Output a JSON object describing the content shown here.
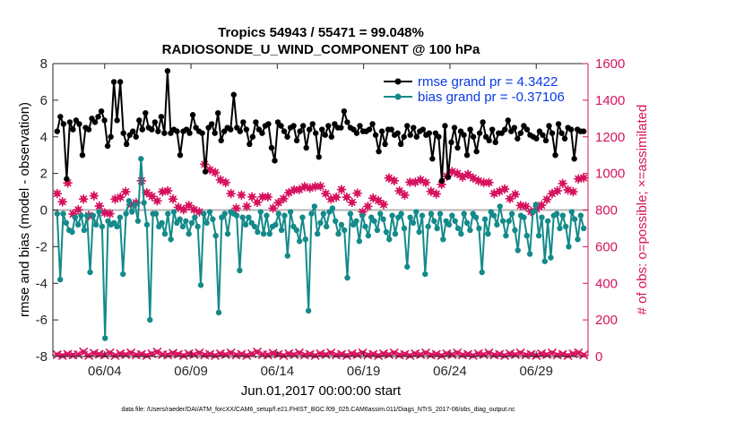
{
  "chart_data": {
    "type": "line",
    "title": "Tropics 54943 / 55471 = 99.048%",
    "subtitle": "RADIOSONDE_U_WIND_COMPONENT @ 100 hPa",
    "xlabel": "Jun.01,2017 00:00:00 start",
    "ylabel": "rmse and bias (model - observation)",
    "y2label": "# of obs: o=possible; ×=assimilated",
    "footnote": "data file: /Users/raeder/DAI/ATM_forcXX/CAM6_setup/f.e21.FHIST_BGC.f09_025.CAM6assim.011/Diags_NTrS_2017-06/obs_diag_output.nc",
    "xlim": [
      0.0,
      31.0
    ],
    "ylim": [
      -8,
      8
    ],
    "y2lim": [
      0,
      1600
    ],
    "xticks": [
      3,
      8,
      13,
      18,
      23,
      28
    ],
    "xticklabels": [
      "06/04",
      "06/09",
      "06/14",
      "06/19",
      "06/24",
      "06/29"
    ],
    "yticks": [
      -8,
      -6,
      -4,
      -2,
      0,
      2,
      4,
      6,
      8
    ],
    "y2ticks": [
      0,
      200,
      400,
      600,
      800,
      1000,
      1200,
      1400,
      1600
    ],
    "colors": {
      "rmse": "#000000",
      "bias": "#148a8a",
      "obs": "#d6135f",
      "legend_text": "#0a3ae6",
      "zero_line": "#b4b4b4"
    },
    "legend": [
      "rmse grand pr = 4.3422",
      "bias grand pr = -0.37106"
    ],
    "series": [
      {
        "name": "rmse grand pr = 4.3422",
        "values": [
          4.3,
          5.1,
          4.7,
          1.7,
          4.8,
          4.4,
          4.9,
          4.7,
          3.0,
          4.5,
          4.4,
          5.0,
          4.8,
          5.1,
          5.4,
          4.9,
          3.5,
          4.0,
          7.0,
          4.9,
          7.0,
          4.2,
          3.6,
          4.1,
          4.3,
          4.0,
          4.9,
          4.4,
          5.3,
          4.5,
          4.4,
          4.8,
          4.3,
          5.1,
          4.2,
          7.6,
          4.2,
          4.4,
          4.3,
          3.0,
          4.3,
          4.4,
          4.2,
          5.2,
          4.5,
          4.3,
          4.2,
          2.1,
          4.5,
          4.7,
          4.2,
          5.3,
          3.8,
          4.3,
          4.5,
          4.4,
          6.3,
          4.5,
          4.3,
          4.8,
          4.4,
          3.6,
          4.0,
          4.8,
          4.4,
          4.2,
          4.6,
          4.7,
          3.4,
          2.7,
          4.8,
          4.6,
          4.3,
          4.0,
          4.5,
          4.6,
          3.8,
          4.3,
          4.6,
          3.4,
          4.4,
          4.7,
          4.2,
          2.9,
          4.4,
          4.1,
          4.6,
          4.0,
          4.7,
          4.5,
          4.5,
          5.4,
          4.8,
          4.5,
          4.4,
          4.2,
          4.6,
          4.3,
          4.3,
          4.4,
          4.7,
          4.1,
          3.2,
          4.3,
          3.6,
          4.4,
          4.4,
          4.1,
          4.2,
          3.6,
          4.0,
          4.6,
          4.1,
          4.5,
          4.0,
          4.3,
          4.4,
          4.1,
          4.2,
          2.8,
          4.2,
          4.0,
          1.6,
          4.6,
          1.8,
          3.7,
          4.5,
          3.4,
          4.3,
          4.1,
          3.0,
          4.4,
          4.0,
          3.2,
          4.2,
          4.8,
          4.0,
          3.8,
          4.4,
          3.7,
          4.2,
          4.2,
          4.4,
          4.9,
          4.3,
          4.5,
          3.9,
          4.2,
          4.6,
          4.4,
          4.1,
          4.0,
          3.9,
          4.3,
          4.1,
          3.8,
          4.6,
          4.2,
          3.0,
          4.7,
          4.2,
          3.9,
          4.5,
          4.4,
          2.8,
          4.4,
          4.3,
          4.3
        ],
        "color": "#000000"
      },
      {
        "name": "bias grand pr = -0.37106",
        "values": [
          -0.2,
          -3.8,
          -0.2,
          -0.7,
          -1.1,
          -1.2,
          -0.4,
          -0.8,
          -0.3,
          -1.1,
          -0.3,
          -3.4,
          -0.3,
          -0.8,
          -0.1,
          -0.9,
          -7.0,
          -0.6,
          -0.8,
          -0.7,
          -0.9,
          -0.4,
          -3.5,
          -0.2,
          0.5,
          -0.1,
          0.3,
          -0.6,
          2.8,
          0.4,
          -0.8,
          -6.0,
          -0.2,
          -0.2,
          -0.9,
          -0.7,
          -1.3,
          -0.2,
          -1.6,
          -0.1,
          -0.7,
          -0.5,
          -0.9,
          -0.6,
          -1.3,
          -0.7,
          -0.4,
          -0.9,
          -4.1,
          -0.2,
          -0.7,
          -0.1,
          -0.5,
          -1.4,
          -5.6,
          -0.4,
          -0.2,
          -1.3,
          -0.1,
          -0.2,
          -0.3,
          -3.3,
          -0.4,
          -0.8,
          -0.4,
          -0.7,
          -0.9,
          -1.2,
          -0.1,
          -1.3,
          -0.3,
          -1.3,
          -0.9,
          -0.8,
          -0.2,
          -1.1,
          -0.3,
          -2.5,
          -0.1,
          -0.9,
          -1.1,
          -1.7,
          -0.4,
          -1.6,
          -5.5,
          -0.2,
          0.2,
          -1.3,
          -0.7,
          -0.2,
          -0.9,
          -0.1,
          0.1,
          -0.6,
          -1.3,
          -0.8,
          -1.1,
          -3.7,
          -0.2,
          -0.8,
          -0.6,
          -1.7,
          -0.3,
          -0.9,
          -1.4,
          -0.4,
          -0.6,
          -1.1,
          -0.2,
          -0.5,
          -1.2,
          -1.6,
          -0.3,
          -1.3,
          -0.4,
          -0.2,
          -1.0,
          -3.1,
          -0.4,
          -0.7,
          -0.1,
          -1.2,
          -0.3,
          -3.5,
          -0.9,
          -0.2,
          -0.6,
          -1.0,
          -0.2,
          -1.6,
          -0.6,
          -0.8,
          -0.3,
          -0.6,
          -1.0,
          -1.3,
          -0.2,
          -0.7,
          -1.1,
          -0.2,
          -0.4,
          -1.0,
          -3.4,
          -0.5,
          -1.3,
          -0.1,
          -0.3,
          -0.8,
          0.2,
          -0.6,
          -1.4,
          -0.6,
          -0.2,
          -1.1,
          -2.2,
          -0.3,
          -0.4,
          -1.4,
          -2.4,
          -0.1,
          0.3,
          -1.4,
          -0.4,
          -2.8,
          -0.6,
          -2.6,
          -0.3,
          -0.2,
          -1.0,
          -0.3,
          -0.9,
          -2.0,
          -0.1,
          -0.5,
          -1.6,
          -0.3,
          -1.0
        ],
        "color": "#148a8a"
      },
      {
        "name": "obs possible",
        "axis": "right",
        "values": [
          890,
          845,
          948,
          778,
          802,
          860,
          770,
          878,
          822,
          785,
          780,
          860,
          870,
          900,
          830,
          840,
          960,
          895,
          875,
          850,
          900,
          905,
          860,
          815,
          802,
          825,
          802,
          790,
          1050,
          1020,
          1005,
          965,
          950,
          890,
          810,
          882,
          820,
          872,
          842,
          872,
          872,
          810,
          840,
          862,
          895,
          910,
          912,
          928,
          920,
          928,
          930,
          890,
          860,
          870,
          912,
          870,
          842,
          892,
          790,
          820,
          865,
          852,
          830,
          975,
          960,
          905,
          882,
          952,
          952,
          965,
          950,
          902,
          888,
          940,
          985,
          1010,
          1000,
          980,
          995,
          975,
          960,
          950,
          950,
          890,
          902,
          915,
          862,
          886,
          825,
          820,
          792,
          806,
          826,
          858,
          890,
          905,
          945,
          910,
          900,
          970,
          976
        ],
        "color": "#d6135f"
      },
      {
        "name": "obs assimilated",
        "axis": "right",
        "values": [
          10,
          5,
          12,
          8,
          10,
          25,
          5,
          18,
          12,
          8,
          20,
          5,
          15,
          10,
          20,
          8,
          12,
          5,
          15,
          25,
          10,
          8,
          18,
          12,
          5,
          15,
          10,
          20,
          8,
          12,
          5,
          15,
          10,
          20,
          8,
          12,
          5,
          15,
          25,
          10,
          8,
          18,
          12,
          5,
          15,
          10,
          20,
          8,
          12,
          5,
          15,
          10,
          20,
          8,
          12,
          5,
          15,
          10,
          20,
          8,
          12,
          5,
          15,
          10,
          20,
          8,
          12,
          5,
          15,
          10,
          20,
          8,
          12,
          5,
          15,
          10,
          20,
          8,
          12,
          5,
          15,
          10,
          20,
          8,
          12,
          5,
          15,
          10,
          20,
          8,
          12,
          5,
          15,
          10,
          20,
          8,
          12,
          5,
          15,
          20,
          8
        ],
        "color": "#d6135f"
      }
    ]
  }
}
